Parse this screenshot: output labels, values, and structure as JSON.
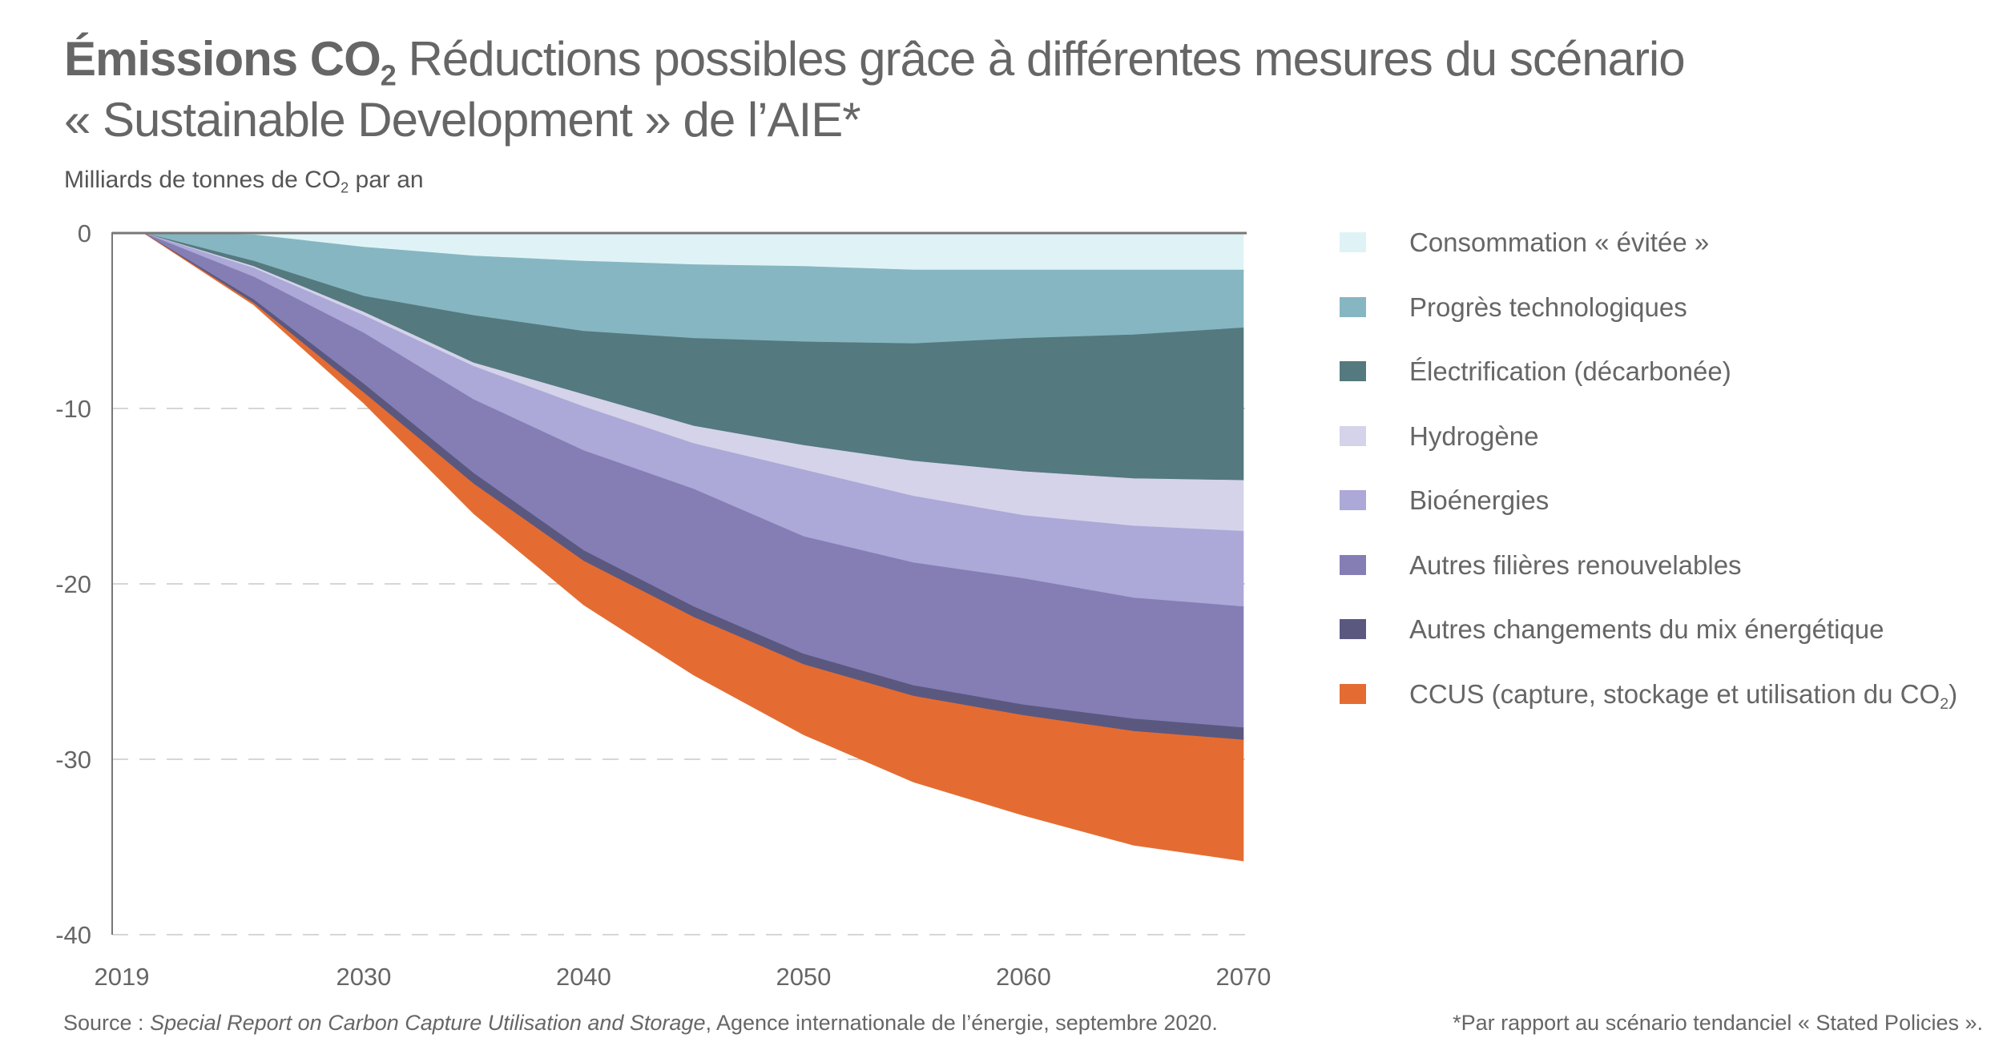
{
  "title": {
    "bold_part": "Émissions CO",
    "bold_sub": "2",
    "rest_line1": " Réductions possibles grâce à différentes mesures du scénario",
    "line2": "« Sustainable Development » de l’AIE*"
  },
  "subtitle": {
    "text": "Milliards de tonnes de CO",
    "sub": "2",
    "after": " par an"
  },
  "source": {
    "prefix": "Source : ",
    "italic": "Special Report on Carbon Capture Utilisation and Storage",
    "suffix": ", Agence internationale de l’énergie, septembre 2020."
  },
  "footnote": "*Par rapport au scénario tendanciel « Stated Policies ».",
  "chart_data": {
    "type": "area",
    "stacked": true,
    "title": "Émissions CO2 Réductions possibles grâce à différentes mesures du scénario « Sustainable Development » de l’AIE*",
    "ylabel": "Milliards de tonnes de CO2 par an",
    "xlabel": "",
    "xlim": [
      2019,
      2070
    ],
    "ylim": [
      -40,
      0
    ],
    "x_ticks": [
      "2019",
      "2030",
      "2040",
      "2050",
      "2060",
      "2070"
    ],
    "x_tick_values": [
      2019,
      2030,
      2040,
      2050,
      2060,
      2070
    ],
    "y_ticks": [
      "0",
      "-10",
      "-20",
      "-30",
      "-40"
    ],
    "y_tick_values": [
      0,
      -10,
      -20,
      -30,
      -40
    ],
    "grid": "horizontal dashed",
    "legend_position": "right",
    "x": [
      2020,
      2025,
      2030,
      2035,
      2040,
      2045,
      2050,
      2055,
      2060,
      2065,
      2070
    ],
    "series": [
      {
        "name": "Consommation « évitée »",
        "color": "#dff3f6",
        "values": [
          0,
          -0.1,
          -0.8,
          -1.3,
          -1.6,
          -1.8,
          -1.9,
          -2.1,
          -2.1,
          -2.1,
          -2.1
        ]
      },
      {
        "name": "Progrès technologiques",
        "color": "#86b6c2",
        "values": [
          0,
          -1.5,
          -2.8,
          -3.4,
          -4.0,
          -4.2,
          -4.3,
          -4.2,
          -3.9,
          -3.7,
          -3.3
        ]
      },
      {
        "name": "Électrification (décarbonée)",
        "color": "#54797e",
        "values": [
          0,
          -0.3,
          -0.9,
          -2.7,
          -3.6,
          -5.0,
          -5.9,
          -6.7,
          -7.6,
          -8.2,
          -8.7
        ]
      },
      {
        "name": "Hydrogène",
        "color": "#d4d3ea",
        "values": [
          0,
          -0.1,
          -0.2,
          -0.2,
          -0.7,
          -1.0,
          -1.4,
          -2.0,
          -2.5,
          -2.7,
          -2.9
        ]
      },
      {
        "name": "Bioénergies",
        "color": "#aca8d7",
        "values": [
          0,
          -0.5,
          -1.0,
          -1.9,
          -2.5,
          -2.6,
          -3.8,
          -3.8,
          -3.6,
          -4.1,
          -4.3
        ]
      },
      {
        "name": "Autres filières renouvelables",
        "color": "#847eb5",
        "values": [
          0,
          -1.3,
          -2.9,
          -4.2,
          -5.7,
          -6.7,
          -6.7,
          -7.0,
          -7.2,
          -6.9,
          -6.9
        ]
      },
      {
        "name": "Autres changements du mix énergétique",
        "color": "#5b5880",
        "values": [
          0,
          -0.2,
          -0.5,
          -0.6,
          -0.6,
          -0.6,
          -0.6,
          -0.6,
          -0.6,
          -0.7,
          -0.7
        ]
      },
      {
        "name": "CCUS (capture, stockage et utilisation du CO2)",
        "color": "#e46c32",
        "values": [
          0,
          -0.1,
          -0.6,
          -1.7,
          -2.5,
          -3.3,
          -4.0,
          -4.9,
          -5.7,
          -6.5,
          -6.9
        ]
      }
    ]
  },
  "legend": [
    {
      "label": "Consommation « évitée »",
      "sub": "",
      "after": "",
      "color": "#dff3f6"
    },
    {
      "label": "Progrès technologiques",
      "sub": "",
      "after": "",
      "color": "#86b6c2"
    },
    {
      "label": "Électrification (décarbonée)",
      "sub": "",
      "after": "",
      "color": "#54797e"
    },
    {
      "label": "Hydrogène",
      "sub": "",
      "after": "",
      "color": "#d4d3ea"
    },
    {
      "label": "Bioénergies",
      "sub": "",
      "after": "",
      "color": "#aca8d7"
    },
    {
      "label": "Autres filières renouvelables",
      "sub": "",
      "after": "",
      "color": "#847eb5"
    },
    {
      "label": "Autres changements du mix énergétique",
      "sub": "",
      "after": "",
      "color": "#5b5880"
    },
    {
      "label": "CCUS (capture, stockage et utilisation du CO",
      "sub": "2",
      "after": ")",
      "color": "#e46c32"
    }
  ]
}
